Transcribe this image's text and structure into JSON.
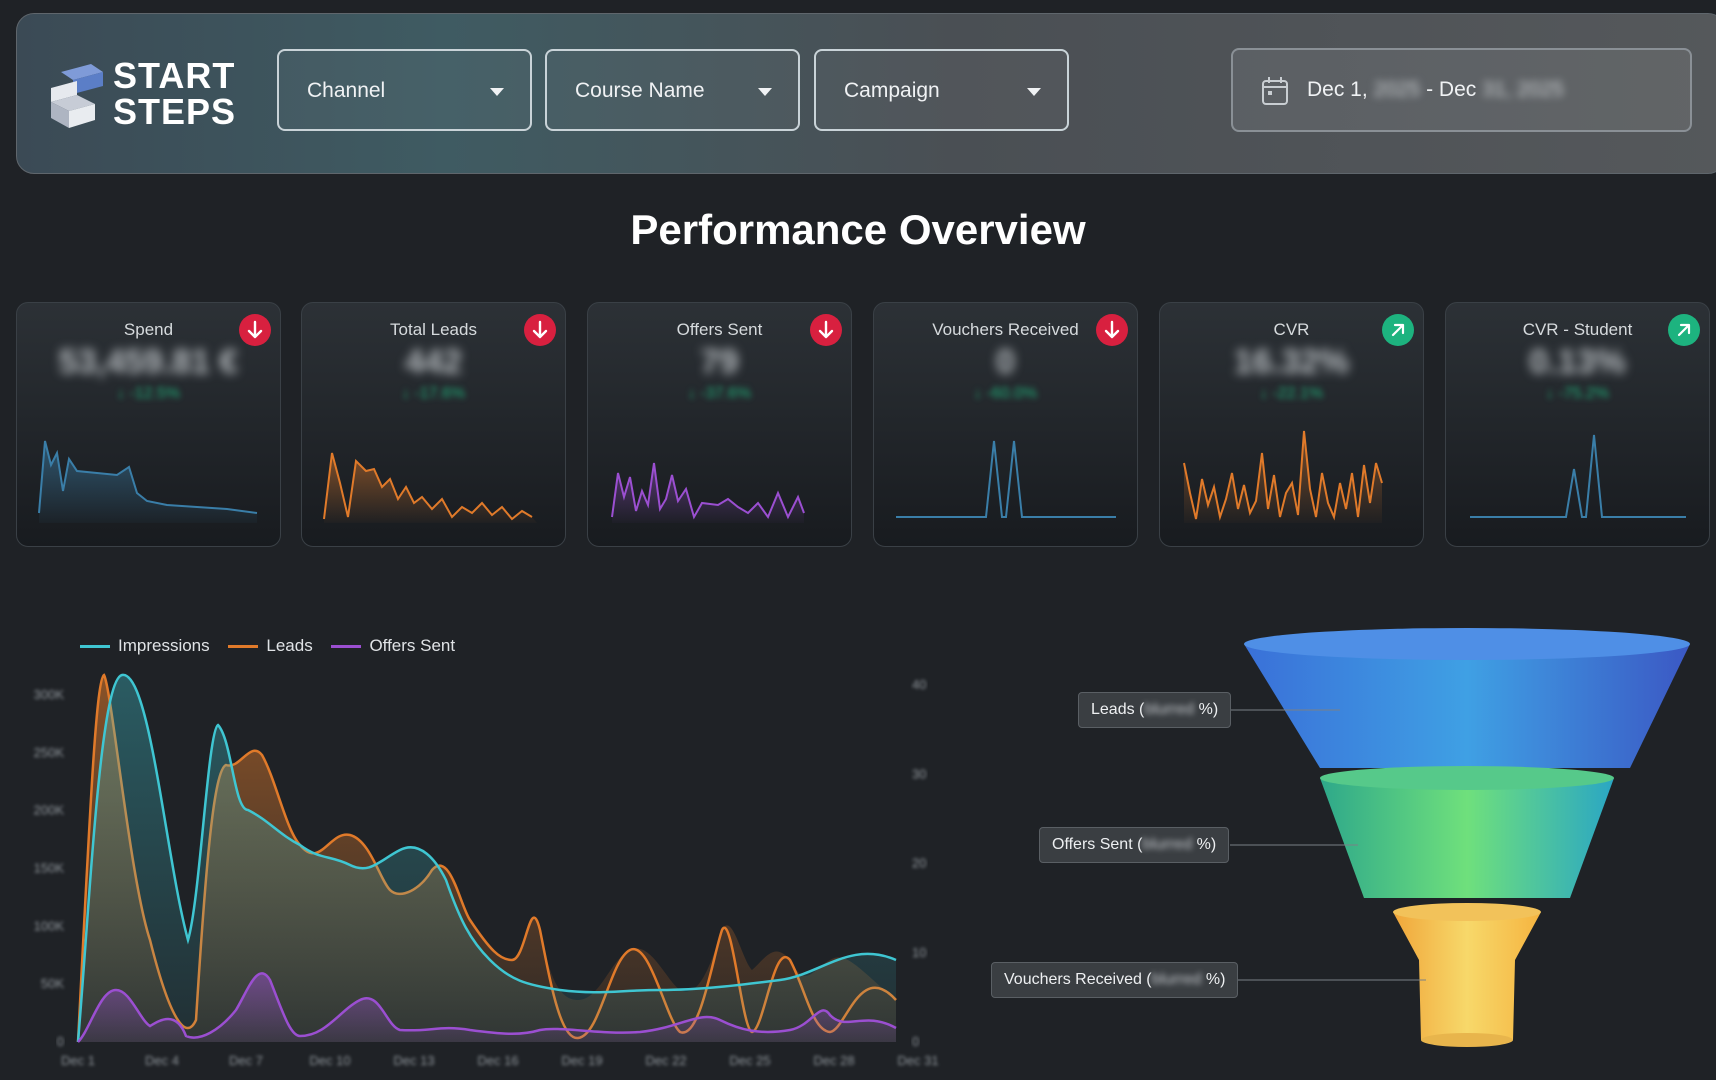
{
  "header": {
    "logo_line1": "START",
    "logo_line2": "STEPS",
    "dropdowns": [
      {
        "label": "Channel"
      },
      {
        "label": "Course Name"
      },
      {
        "label": "Campaign"
      }
    ],
    "date_range": {
      "prefix": "Dec 1, ",
      "start_year": "2025",
      "sep": " - Dec ",
      "end_day_year": "31, 2025"
    }
  },
  "page_title": "Performance Overview",
  "kpi_cards": [
    {
      "label": "Spend",
      "value": "53,459.81 €",
      "delta": "↓ -12.5%",
      "trend": "down",
      "spark_color": "#3a7ea8"
    },
    {
      "label": "Total Leads",
      "value": "442",
      "delta": "↓ -17.6%",
      "trend": "down",
      "spark_color": "#e07a2a"
    },
    {
      "label": "Offers Sent",
      "value": "79",
      "delta": "↓ -37.6%",
      "trend": "down",
      "spark_color": "#9b4fd1"
    },
    {
      "label": "Vouchers Received",
      "value": "0",
      "delta": "↓ -60.0%",
      "trend": "down",
      "spark_color": "#3a7ea8"
    },
    {
      "label": "CVR",
      "value": "16.32%",
      "delta": "↓ -22.1%",
      "trend": "up",
      "spark_color": "#e07a2a"
    },
    {
      "label": "CVR - Student",
      "value": "0.13%",
      "delta": "↓ -75.2%",
      "trend": "up",
      "spark_color": "#3a7ea8"
    }
  ],
  "chart_data": {
    "type": "area",
    "title": "",
    "legend": "top-left",
    "series": [
      {
        "name": "Impressions",
        "color": "#3fc6d2"
      },
      {
        "name": "Leads",
        "color": "#e07a2a"
      },
      {
        "name": "Offers Sent",
        "color": "#9b4fd1"
      }
    ],
    "y_ticks_left": [
      "0",
      "50K",
      "100K",
      "150K",
      "200K",
      "250K",
      "300K"
    ],
    "y_ticks_right": [
      "0",
      "10",
      "20",
      "30",
      "40"
    ],
    "x_ticks": [
      "Dec 1",
      "Dec 4",
      "Dec 7",
      "Dec 10",
      "Dec 13",
      "Dec 16",
      "Dec 19",
      "Dec 22",
      "Dec 25",
      "Dec 28",
      "Dec 31"
    ]
  },
  "funnel": {
    "stages": [
      {
        "name": "Leads (",
        "pct": "blurred",
        "suffix": " %)"
      },
      {
        "name": "Offers Sent (",
        "pct": "blurred",
        "suffix": " %)"
      },
      {
        "name": "Vouchers Received (",
        "pct": "blurred",
        "suffix": " %)"
      }
    ]
  }
}
